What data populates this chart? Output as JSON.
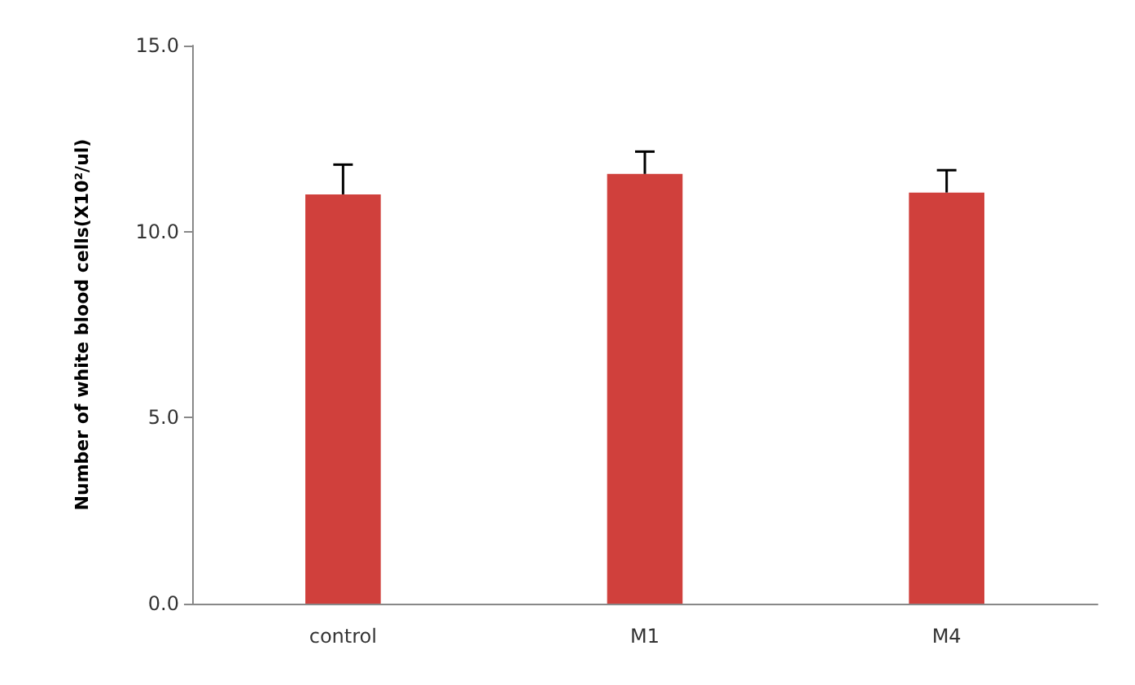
{
  "chart_data": {
    "type": "bar",
    "ylabel": "Number of white blood cells(X10²/ul)",
    "categories": [
      "control",
      "M1",
      "M4"
    ],
    "values": [
      11.0,
      11.55,
      11.05
    ],
    "errors": [
      [
        11.0,
        11.8
      ],
      [
        11.55,
        12.15
      ],
      [
        11.05,
        11.65
      ]
    ],
    "color": "#d0403c",
    "ylim": [
      0,
      15
    ],
    "yticks": [
      {
        "value": 0,
        "label": "0.0"
      },
      {
        "value": 5,
        "label": "5.0"
      },
      {
        "value": 10,
        "label": "10.0"
      },
      {
        "value": 15,
        "label": "15.0"
      }
    ],
    "grid": false
  }
}
